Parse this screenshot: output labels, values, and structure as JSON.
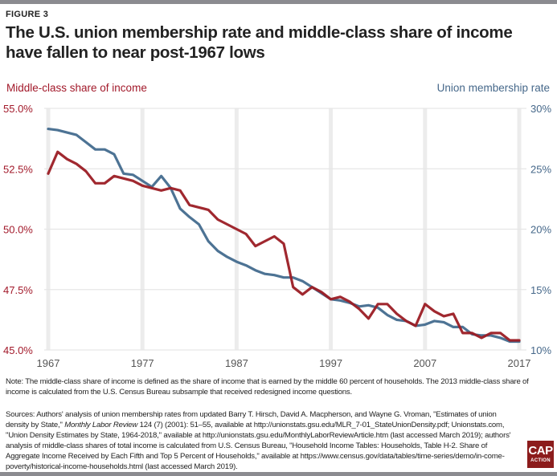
{
  "figure_label": "FIGURE 3",
  "title": "The U.S. union membership rate and middle-class share of income have fallen to near post-1967 lows",
  "colors": {
    "share": "#9b1c24",
    "union": "#436b8e",
    "share_text": "#a2192a",
    "union_text": "#46688a",
    "grid": "#ededed"
  },
  "chart_data": {
    "type": "line",
    "title": "The U.S. union membership rate and middle-class share of income have fallen to near post-1967 lows",
    "xlabel": "",
    "x": [
      1967,
      1968,
      1969,
      1970,
      1971,
      1972,
      1973,
      1974,
      1975,
      1976,
      1977,
      1978,
      1979,
      1980,
      1981,
      1982,
      1983,
      1984,
      1985,
      1986,
      1987,
      1988,
      1989,
      1990,
      1991,
      1992,
      1993,
      1994,
      1995,
      1996,
      1997,
      1998,
      1999,
      2000,
      2001,
      2002,
      2003,
      2004,
      2005,
      2006,
      2007,
      2008,
      2009,
      2010,
      2011,
      2012,
      2013,
      2014,
      2015,
      2016,
      2017
    ],
    "x_ticks": [
      "1967",
      "1977",
      "1987",
      "1997",
      "2007",
      "2017"
    ],
    "x_range": [
      1967,
      2017
    ],
    "left_axis": {
      "label": "Middle-class share of income",
      "range": [
        45.0,
        55.0
      ],
      "ticks": [
        "55.0%",
        "52.5%",
        "50.0%",
        "47.5%",
        "45.0%"
      ],
      "tick_values": [
        55.0,
        52.5,
        50.0,
        47.5,
        45.0
      ]
    },
    "right_axis": {
      "label": "Union membership rate",
      "range": [
        10,
        30
      ],
      "ticks": [
        "30%",
        "25%",
        "20%",
        "15%",
        "10%"
      ],
      "tick_values": [
        30,
        25,
        20,
        15,
        10
      ]
    },
    "grid": true,
    "series": [
      {
        "name": "Middle-class share of income",
        "axis": "left",
        "values": [
          52.3,
          53.2,
          52.9,
          52.7,
          52.4,
          51.9,
          51.9,
          52.2,
          52.1,
          52.0,
          51.8,
          51.7,
          51.6,
          51.7,
          51.6,
          51.0,
          50.9,
          50.8,
          50.4,
          50.2,
          50.0,
          49.8,
          49.3,
          49.5,
          49.7,
          49.4,
          47.6,
          47.3,
          47.6,
          47.4,
          47.1,
          47.2,
          47.0,
          46.7,
          46.3,
          46.9,
          46.9,
          46.5,
          46.2,
          46.0,
          46.9,
          46.6,
          46.4,
          46.5,
          45.7,
          45.7,
          45.5,
          45.7,
          45.7,
          45.4,
          45.4
        ]
      },
      {
        "name": "Union membership rate",
        "axis": "right",
        "values": [
          28.3,
          28.2,
          28.0,
          27.8,
          27.2,
          26.6,
          26.6,
          26.2,
          24.6,
          24.5,
          24.0,
          23.5,
          24.4,
          23.4,
          21.7,
          21.0,
          20.4,
          19.0,
          18.2,
          17.7,
          17.3,
          17.0,
          16.6,
          16.3,
          16.2,
          16.0,
          16.0,
          15.7,
          15.2,
          14.7,
          14.2,
          14.1,
          13.9,
          13.6,
          13.7,
          13.5,
          12.9,
          12.5,
          12.4,
          12.0,
          12.1,
          12.4,
          12.3,
          11.9,
          11.9,
          11.3,
          11.2,
          11.2,
          11.0,
          10.7,
          10.7
        ]
      }
    ],
    "legend": "axis titles top-left (share) and top-right (union)"
  },
  "note": "Note: The middle-class share of income is defined as the share of income that is earned by the middle 60 percent of households. The 2013 middle-class share of income is calculated from the U.S. Census Bureau subsample that received redesigned income questions.",
  "sources": {
    "part1": "Sources: Authors' analysis of union membership rates from updated Barry T. Hirsch, David A. Macpherson, and Wayne G. Vroman, \"Estimates of union density by State,\" ",
    "journal": "Monthly Labor Review",
    "part2": " 124 (7) (2001): 51–55, available at http://unionstats.gsu.edu/MLR_7-01_StateUnionDensity.pdf; Unionstats.com, \"Union Density Estimates by State, 1964-2018,\" available at http://unionstats.gsu.edu/MonthlyLaborReviewArticle.htm (last accessed March 2019); authors' analysis of middle-class shares of total income is calculated from U.S. Census Bureau, \"Household Income Tables: Households, Table H-2. Share of Aggregate Income Received by Each Fifth and Top 5 Percent of Households,\" available at https://www.census.gov/data/tables/time-series/demo/in-come-poverty/historical-income-households.html (last accessed March 2019)."
  },
  "logo": {
    "line1": "CAP",
    "line2": "ACTION"
  }
}
